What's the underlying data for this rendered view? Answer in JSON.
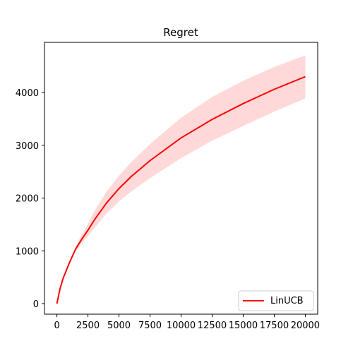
{
  "chart_data": {
    "type": "line",
    "title": "Regret",
    "xlabel": "",
    "ylabel": "",
    "xlim": [
      -1000,
      21000
    ],
    "ylim": [
      -200,
      4950
    ],
    "xticks": [
      0,
      2500,
      5000,
      7500,
      10000,
      12500,
      15000,
      17500,
      20000
    ],
    "xtick_labels": [
      "0",
      "2500",
      "5000",
      "7500",
      "10000",
      "12500",
      "15000",
      "17500",
      "20000"
    ],
    "yticks": [
      0,
      1000,
      2000,
      3000,
      4000
    ],
    "ytick_labels": [
      "0",
      "1000",
      "2000",
      "3000",
      "4000"
    ],
    "grid": false,
    "legend_position": "bottom-right",
    "series": [
      {
        "name": "LinUCB",
        "color": "#ff0000",
        "band_color": "#ffd9d9",
        "x": [
          0,
          250,
          500,
          1000,
          1500,
          2000,
          2500,
          3000,
          4000,
          5000,
          6000,
          7500,
          10000,
          12500,
          15000,
          17500,
          20000
        ],
        "y": [
          0,
          280,
          480,
          770,
          1030,
          1220,
          1390,
          1580,
          1910,
          2180,
          2410,
          2710,
          3140,
          3490,
          3790,
          4060,
          4300
        ],
        "lower": [
          0,
          280,
          470,
          750,
          990,
          1150,
          1280,
          1430,
          1710,
          1940,
          2130,
          2380,
          2760,
          3090,
          3370,
          3640,
          3890
        ],
        "upper": [
          0,
          290,
          490,
          790,
          1070,
          1300,
          1500,
          1740,
          2120,
          2420,
          2680,
          3020,
          3520,
          3910,
          4220,
          4480,
          4700
        ]
      }
    ]
  }
}
